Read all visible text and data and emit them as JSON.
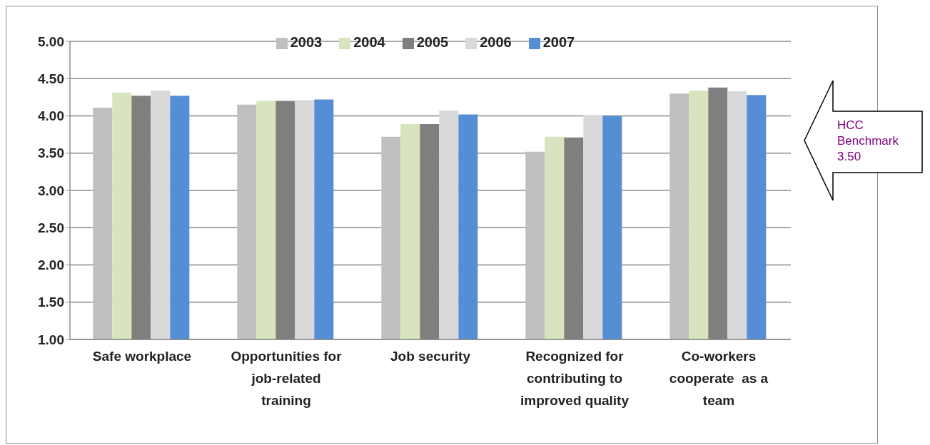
{
  "chart_data": {
    "type": "bar",
    "categories": [
      "Safe workplace",
      "Opportunities for job-related training",
      "Job security",
      "Recognized for contributing to improved quality",
      "Co-workers cooperate  as a team"
    ],
    "series": [
      {
        "name": "2003",
        "color": "#bfbfbf",
        "values": [
          4.11,
          4.15,
          3.72,
          3.52,
          4.3
        ]
      },
      {
        "name": "2004",
        "color": "#d7e4bd",
        "values": [
          4.31,
          4.2,
          3.89,
          3.72,
          4.34
        ]
      },
      {
        "name": "2005",
        "color": "#7f7f7f",
        "values": [
          4.27,
          4.2,
          3.89,
          3.71,
          4.38
        ]
      },
      {
        "name": "2006",
        "color": "#d9d9d9",
        "values": [
          4.34,
          4.21,
          4.07,
          4.01,
          4.33
        ]
      },
      {
        "name": "2007",
        "color": "#558ed5",
        "values": [
          4.27,
          4.22,
          4.02,
          4.0,
          4.28
        ]
      }
    ],
    "ylim": [
      1,
      5
    ],
    "yticks": [
      {
        "value": 1,
        "label": "1.00"
      },
      {
        "value": 1.5,
        "label": "1.50"
      },
      {
        "value": 2,
        "label": "2.00"
      },
      {
        "value": 2.5,
        "label": "2.50"
      },
      {
        "value": 3,
        "label": "3.00"
      },
      {
        "value": 3.5,
        "label": "3.50"
      },
      {
        "value": 4,
        "label": "4.00"
      },
      {
        "value": 4.5,
        "label": "4.50"
      },
      {
        "value": 5,
        "label": "5.00"
      }
    ],
    "grid": "y",
    "legend": "top",
    "annotations": [
      "HCC Benchmark 3.50"
    ]
  }
}
